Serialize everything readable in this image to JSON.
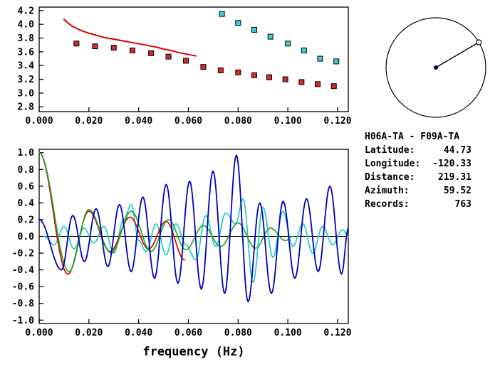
{
  "station_info": {
    "title": "H06A-TA - F09A-TA",
    "rows": [
      {
        "id": "latitude",
        "label": "Latitude:",
        "value": "44.73"
      },
      {
        "id": "longitude",
        "label": "Longitude:",
        "value": "-120.33"
      },
      {
        "id": "distance",
        "label": "Distance:",
        "value": "219.31"
      },
      {
        "id": "azimuth",
        "label": "Azimuth:",
        "value": "59.52"
      },
      {
        "id": "records",
        "label": "Records:",
        "value": "763"
      }
    ]
  },
  "compass": {
    "azimuth_deg": 59.52,
    "center_dot_color": "#000066",
    "line_color": "#000000",
    "marker": "open-circle"
  },
  "chart_data": [
    {
      "id": "dispersion",
      "type": "line",
      "title": "",
      "xlabel": "",
      "ylabel": "",
      "xlim": [
        0,
        0.1243
      ],
      "ylim": [
        2.73,
        4.25
      ],
      "grid": false,
      "legend": "none",
      "xticks": {
        "values": [
          0.0,
          0.02,
          0.04,
          0.06,
          0.08,
          0.1,
          0.12
        ],
        "labels": [
          "0.000",
          "0.020",
          "0.040",
          "0.060",
          "0.080",
          "0.100",
          "0.120"
        ]
      },
      "yticks": {
        "values": [
          2.8,
          3.0,
          3.2,
          3.4,
          3.6,
          3.8,
          4.0,
          4.2
        ],
        "labels": [
          "2.8",
          "3.0",
          "3.2",
          "3.4",
          "3.6",
          "3.8",
          "4.0",
          "4.2"
        ]
      },
      "series": [
        {
          "name": "phase-velocity-curve",
          "type": "line",
          "color": "#dd0000",
          "width": 2,
          "x": [
            0.01,
            0.0115,
            0.013,
            0.015,
            0.0175,
            0.02,
            0.023,
            0.026,
            0.029,
            0.032,
            0.035,
            0.038,
            0.041,
            0.044,
            0.047,
            0.05,
            0.053,
            0.056,
            0.059,
            0.0615,
            0.063
          ],
          "y": [
            4.07,
            4.02,
            3.98,
            3.94,
            3.9,
            3.87,
            3.84,
            3.81,
            3.79,
            3.77,
            3.75,
            3.73,
            3.71,
            3.69,
            3.67,
            3.64,
            3.62,
            3.59,
            3.57,
            3.55,
            3.54
          ]
        },
        {
          "name": "red-square-dispersion-points",
          "type": "squares",
          "color": "#d42a2a",
          "edge": "#000000",
          "x": [
            0.015,
            0.0225,
            0.03,
            0.0375,
            0.045,
            0.052,
            0.059,
            0.066,
            0.073,
            0.08,
            0.0865,
            0.0925,
            0.099,
            0.1055,
            0.112,
            0.1185
          ],
          "y": [
            3.72,
            3.68,
            3.66,
            3.62,
            3.58,
            3.53,
            3.47,
            3.38,
            3.33,
            3.3,
            3.26,
            3.23,
            3.2,
            3.16,
            3.13,
            3.1
          ]
        },
        {
          "name": "cyan-square-dispersion-points",
          "type": "squares",
          "color": "#3ecfcf",
          "edge": "#000000",
          "x": [
            0.0735,
            0.08,
            0.0865,
            0.093,
            0.1,
            0.1065,
            0.113,
            0.1195
          ],
          "y": [
            4.15,
            4.02,
            3.92,
            3.82,
            3.72,
            3.62,
            3.5,
            3.46
          ]
        }
      ]
    },
    {
      "id": "correlation",
      "type": "line",
      "title": "",
      "xlabel": "frequency (Hz)",
      "ylabel": "",
      "xlim": [
        0,
        0.1243
      ],
      "ylim": [
        -1.04,
        1.04
      ],
      "zero_line": true,
      "grid": false,
      "legend": "none",
      "xticks": {
        "values": [
          0.0,
          0.02,
          0.04,
          0.06,
          0.08,
          0.1,
          0.12
        ],
        "labels": [
          "0.000",
          "0.020",
          "0.040",
          "0.060",
          "0.080",
          "0.100",
          "0.120"
        ]
      },
      "yticks": {
        "values": [
          -1.0,
          -0.8,
          -0.6,
          -0.4,
          -0.2,
          0.0,
          0.2,
          0.4,
          0.6,
          0.8,
          1.0
        ],
        "labels": [
          "-1.0",
          "-0.8",
          "-0.6",
          "-0.4",
          "-0.2",
          "0.0",
          "0.2",
          "0.4",
          "0.6",
          "0.8",
          "1.0"
        ]
      },
      "series": [
        {
          "name": "waveform-cyan",
          "type": "wave",
          "color": "#22cccc",
          "width": 1.7,
          "x": [
            0.002,
            0.006,
            0.01,
            0.014,
            0.018,
            0.022,
            0.026,
            0.03,
            0.034,
            0.037,
            0.04,
            0.043,
            0.047,
            0.051,
            0.055,
            0.059,
            0.063,
            0.067,
            0.071,
            0.075,
            0.079,
            0.082,
            0.086,
            0.09,
            0.094,
            0.098,
            0.102,
            0.106,
            0.11,
            0.114,
            0.118,
            0.122,
            0.1243
          ],
          "y": [
            0.0,
            -0.1,
            0.12,
            -0.15,
            0.1,
            -0.08,
            0.12,
            -0.2,
            0.2,
            0.38,
            -0.05,
            -0.18,
            0.15,
            -0.22,
            0.15,
            -0.1,
            -0.28,
            0.25,
            -0.12,
            0.28,
            0.15,
            0.45,
            -0.55,
            0.35,
            -0.25,
            0.3,
            -0.12,
            0.15,
            -0.2,
            0.12,
            -0.1,
            0.08,
            0.0
          ]
        },
        {
          "name": "waveform-red",
          "type": "wave",
          "color": "#dd0000",
          "width": 1.7,
          "x": [
            0.0,
            0.0115,
            0.02,
            0.0285,
            0.0365,
            0.044,
            0.051,
            0.0585
          ],
          "y": [
            1.0,
            -0.45,
            0.3,
            -0.18,
            0.23,
            -0.15,
            0.18,
            -0.28
          ]
        },
        {
          "name": "waveform-green",
          "type": "wave",
          "color": "#22aa22",
          "width": 1.7,
          "x": [
            0.0,
            0.012,
            0.02,
            0.029,
            0.037,
            0.045,
            0.052,
            0.059,
            0.066,
            0.073,
            0.08,
            0.087,
            0.093,
            0.099,
            0.102
          ],
          "y": [
            1.0,
            -0.42,
            0.32,
            -0.2,
            0.3,
            -0.18,
            0.2,
            -0.16,
            0.13,
            -0.12,
            0.16,
            -0.14,
            0.1,
            -0.05,
            0.0
          ]
        },
        {
          "name": "waveform-blue",
          "type": "wave",
          "color": "#0000bb",
          "width": 1.8,
          "x": [
            0.0,
            0.009,
            0.0135,
            0.0182,
            0.0229,
            0.0276,
            0.0323,
            0.037,
            0.0417,
            0.0464,
            0.0511,
            0.0558,
            0.0605,
            0.0652,
            0.0699,
            0.0746,
            0.0793,
            0.084,
            0.0887,
            0.0934,
            0.0981,
            0.1028,
            0.1075,
            0.1122,
            0.1169,
            0.1216,
            0.1243
          ],
          "y": [
            0.2,
            -0.4,
            0.25,
            -0.3,
            0.33,
            -0.36,
            0.38,
            -0.42,
            0.47,
            -0.5,
            0.62,
            -0.56,
            0.66,
            -0.63,
            0.78,
            -0.68,
            0.97,
            -0.78,
            0.4,
            -0.68,
            0.42,
            -0.5,
            0.45,
            -0.42,
            0.6,
            -0.45,
            0.1
          ]
        }
      ]
    }
  ]
}
